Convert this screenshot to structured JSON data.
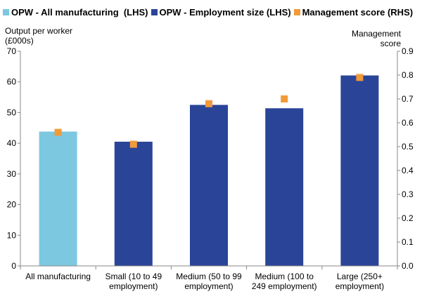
{
  "chart_data": {
    "type": "bar",
    "categories": [
      [
        "All manufacturing"
      ],
      [
        "Small (10 to 49",
        "employment)"
      ],
      [
        "Medium (50 to 99",
        "employment)"
      ],
      [
        "Medium (100 to",
        "249 employment)"
      ],
      [
        "Large (250+",
        "employment)"
      ]
    ],
    "series": [
      {
        "name": "OPW - All manufacturing  (LHS)",
        "axis": "left",
        "type": "bar",
        "color": "#7cc8e0",
        "values": [
          43.8,
          null,
          null,
          null,
          null
        ]
      },
      {
        "name": "OPW - Employment size (LHS)",
        "axis": "left",
        "type": "bar",
        "color": "#2a4598",
        "values": [
          null,
          40.5,
          52.5,
          51.4,
          62.1
        ]
      },
      {
        "name": "Management score (RHS)",
        "axis": "right",
        "type": "scatter",
        "color": "#f29a3a",
        "values": [
          0.56,
          0.51,
          0.68,
          0.7,
          0.79
        ]
      }
    ],
    "ylabel_left": [
      "Output per worker",
      "(£000s)"
    ],
    "ylabel_right": [
      "Management",
      "score"
    ],
    "ylim_left": [
      0,
      70
    ],
    "ylim_right": [
      0,
      0.9
    ],
    "yticks_left": [
      "0",
      "10",
      "20",
      "30",
      "40",
      "50",
      "60",
      "70"
    ],
    "yticks_right": [
      "0.0",
      "0.1",
      "0.2",
      "0.3",
      "0.4",
      "0.5",
      "0.6",
      "0.7",
      "0.8",
      "0.9"
    ],
    "grid": false,
    "legend_position": "top"
  }
}
